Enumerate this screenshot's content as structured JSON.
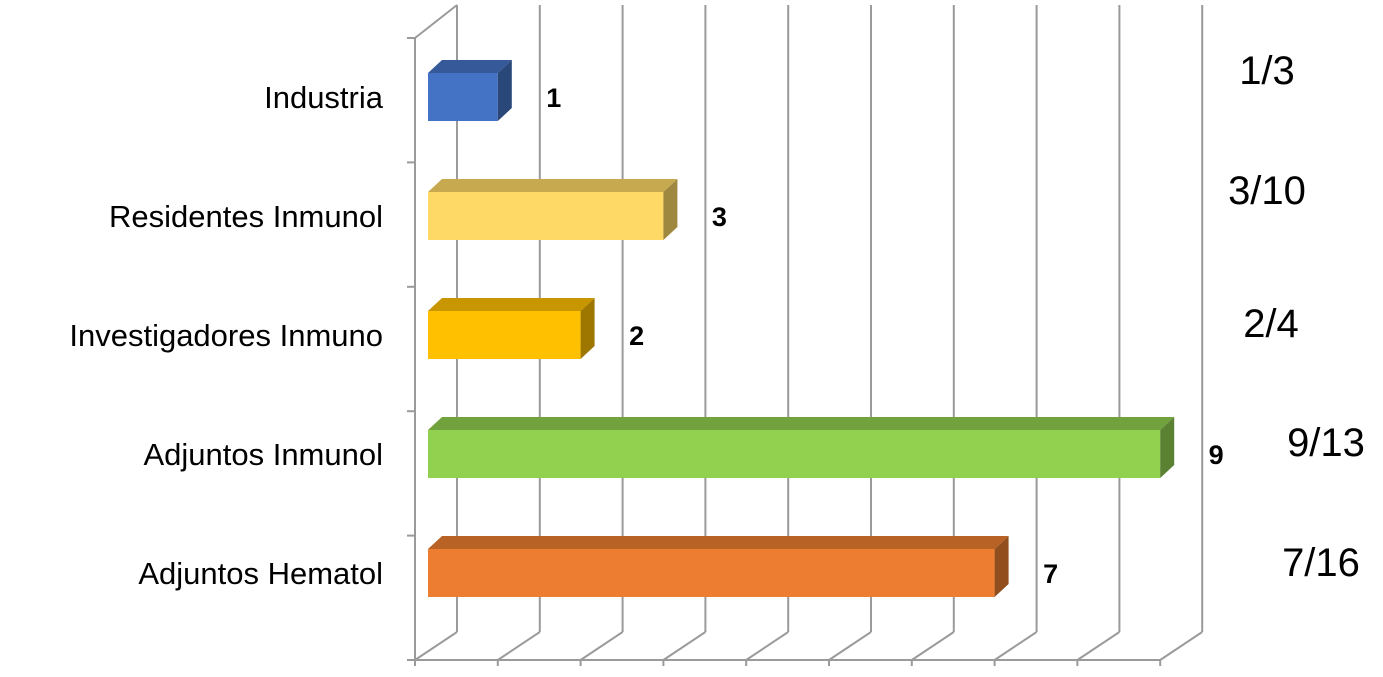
{
  "chart_data": {
    "type": "bar",
    "orientation": "horizontal",
    "style": "3d",
    "categories": [
      "Industria",
      "Residentes Inmunol",
      "Investigadores Inmuno",
      "Adjuntos Inmunol",
      "Adjuntos Hematol"
    ],
    "values": [
      1,
      3,
      2,
      9,
      7
    ],
    "data_labels": [
      "1",
      "3",
      "2",
      "9",
      "7"
    ],
    "ratio_labels": [
      "1/3",
      "3/10",
      "2/4",
      "9/13",
      "7/16"
    ],
    "colors": [
      "#4472C4",
      "#FFD966",
      "#FFC000",
      "#92D050",
      "#ED7D31"
    ],
    "xlim": [
      0,
      9
    ],
    "x_ticks": [
      0,
      1,
      2,
      3,
      4,
      5,
      6,
      7,
      8,
      9
    ],
    "grid": true,
    "legend": "none"
  }
}
